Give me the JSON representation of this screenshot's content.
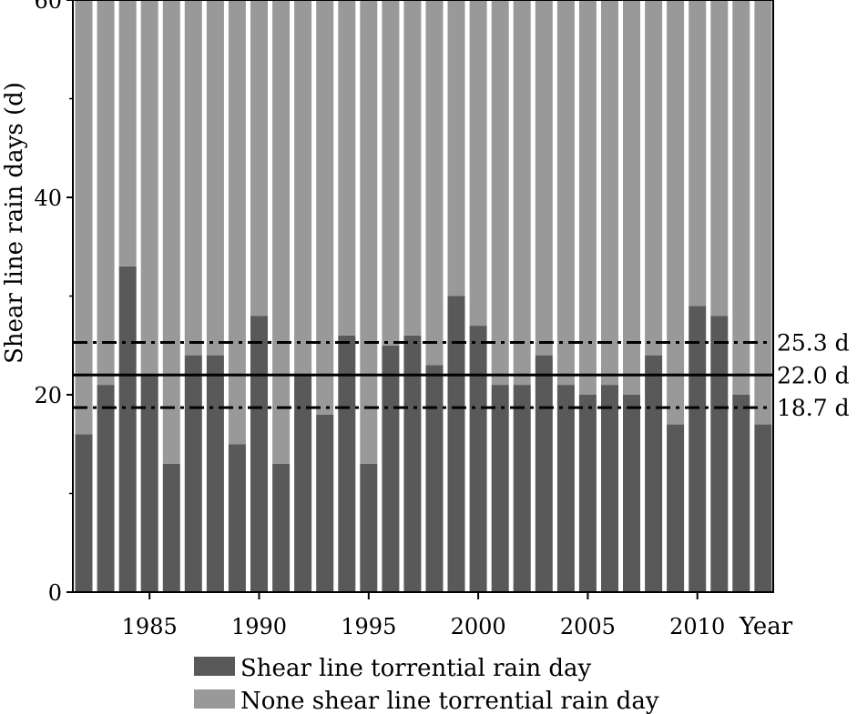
{
  "chart_data": {
    "type": "bar",
    "stacked": true,
    "ylabel": "Shear line rain days (d)",
    "xlabel": "Year",
    "ylim": [
      0,
      60
    ],
    "yticks": [
      0,
      20,
      40,
      60
    ],
    "xticks": [
      1985,
      1990,
      1995,
      2000,
      2005,
      2010
    ],
    "x": [
      1982,
      1983,
      1984,
      1985,
      1986,
      1987,
      1988,
      1989,
      1990,
      1991,
      1992,
      1993,
      1994,
      1995,
      1996,
      1997,
      1998,
      1999,
      2000,
      2001,
      2002,
      2003,
      2004,
      2005,
      2006,
      2007,
      2008,
      2009,
      2010,
      2011,
      2012,
      2013
    ],
    "series": [
      {
        "name": "Shear line torrential rain day",
        "color": "#595959",
        "values": [
          16,
          21,
          33,
          22,
          13,
          24,
          24,
          15,
          28,
          13,
          22,
          18,
          26,
          13,
          25,
          26,
          23,
          30,
          27,
          21,
          21,
          24,
          21,
          20,
          21,
          20,
          24,
          17,
          29,
          28,
          20,
          17
        ]
      },
      {
        "name": "None shear line torrential rain day",
        "color": "#999999",
        "values": [
          44,
          39,
          27,
          38,
          47,
          36,
          36,
          45,
          32,
          47,
          38,
          42,
          34,
          47,
          35,
          34,
          37,
          30,
          33,
          39,
          39,
          36,
          39,
          40,
          39,
          40,
          36,
          43,
          31,
          32,
          40,
          43
        ]
      }
    ],
    "reference_lines": [
      {
        "value": 25.3,
        "label": "25.3 d",
        "style": "dash-dot"
      },
      {
        "value": 22.0,
        "label": "22.0 d",
        "style": "solid"
      },
      {
        "value": 18.7,
        "label": "18.7 d",
        "style": "dash-dot"
      }
    ],
    "legend_position": "bottom"
  }
}
